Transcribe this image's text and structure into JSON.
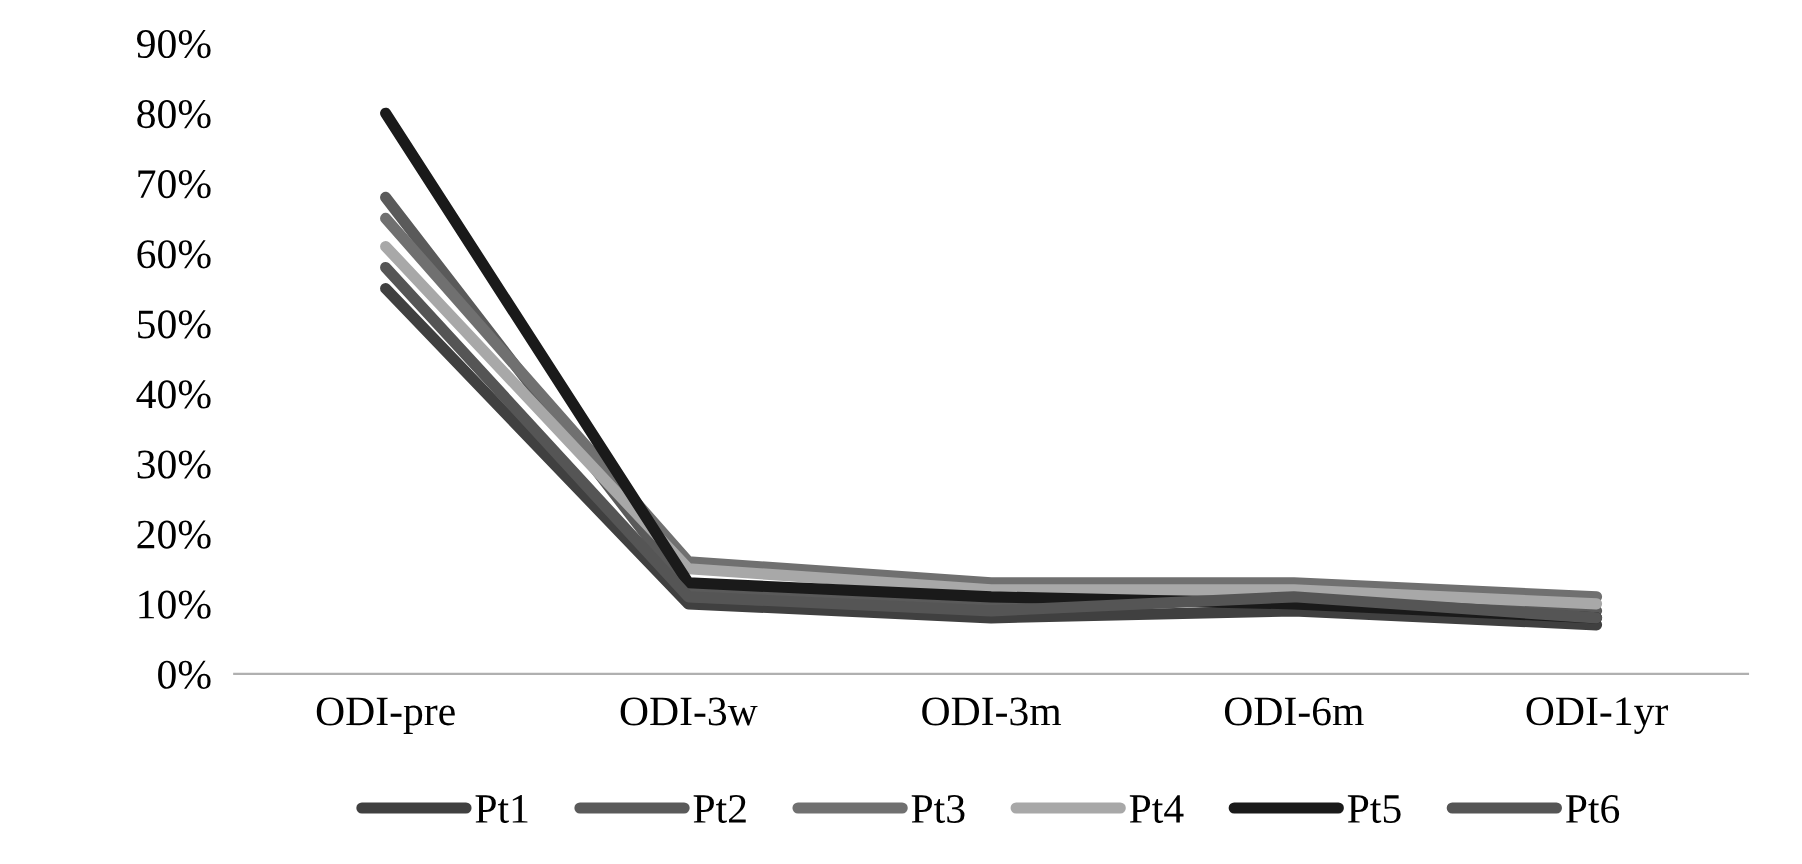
{
  "chart_data": {
    "type": "line",
    "categories": [
      "ODI-pre",
      "ODI-3w",
      "ODI-3m",
      "ODI-6m",
      "ODI-1yr"
    ],
    "series": [
      {
        "name": "Pt1",
        "color": "#404040",
        "values": [
          55,
          10,
          8,
          9,
          7
        ]
      },
      {
        "name": "Pt2",
        "color": "#5a5a5a",
        "values": [
          68,
          12,
          10,
          12,
          9
        ]
      },
      {
        "name": "Pt3",
        "color": "#707070",
        "values": [
          65,
          16,
          13,
          13,
          11
        ]
      },
      {
        "name": "Pt4",
        "color": "#a8a8a8",
        "values": [
          61,
          15,
          12,
          12,
          10
        ]
      },
      {
        "name": "Pt5",
        "color": "#1a1a1a",
        "values": [
          80,
          13,
          11,
          10,
          8
        ]
      },
      {
        "name": "Pt6",
        "color": "#555555",
        "values": [
          58,
          11,
          9,
          11,
          8
        ]
      }
    ],
    "ylim": [
      0,
      90
    ],
    "yticks": [
      {
        "value": 0,
        "label": "0%"
      },
      {
        "value": 10,
        "label": "10%"
      },
      {
        "value": 20,
        "label": "20%"
      },
      {
        "value": 30,
        "label": "30%"
      },
      {
        "value": 40,
        "label": "40%"
      },
      {
        "value": 50,
        "label": "50%"
      },
      {
        "value": 60,
        "label": "60%"
      },
      {
        "value": 70,
        "label": "70%"
      },
      {
        "value": 80,
        "label": "80%"
      },
      {
        "value": 90,
        "label": "90%"
      }
    ],
    "grid": false,
    "legend": "bottom",
    "marker": "none",
    "line_style": "solid"
  }
}
